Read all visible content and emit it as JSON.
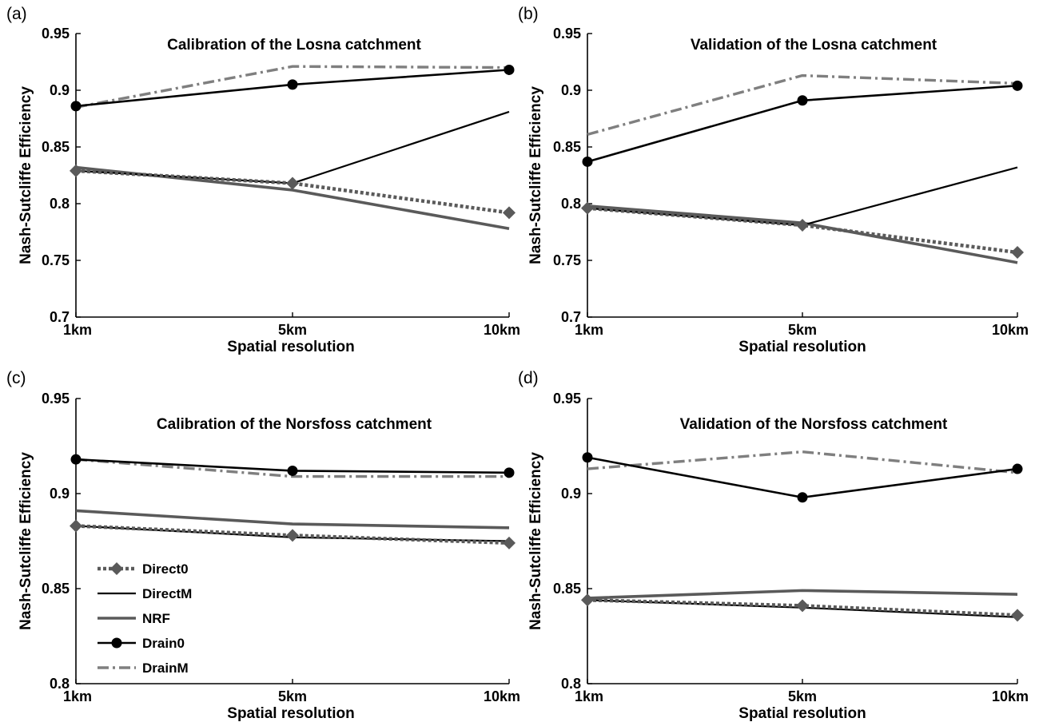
{
  "chart_data": [
    {
      "type": "line",
      "panel_label": "(a)",
      "title": "Calibration of the Losna catchment",
      "xlabel": "Spatial resolution",
      "ylabel": "Nash-Sutcliffe Efficiency",
      "categories": [
        "1km",
        "5km",
        "10km"
      ],
      "ylim": [
        0.7,
        0.95
      ],
      "yticks": [
        "0.7",
        "0.75",
        "0.8",
        "0.85",
        "0.9",
        "0.95"
      ],
      "series": [
        {
          "name": "Direct0",
          "values": [
            0.829,
            0.818,
            0.792
          ]
        },
        {
          "name": "DirectM",
          "values": [
            0.829,
            0.818,
            0.881
          ]
        },
        {
          "name": "NRF",
          "values": [
            0.832,
            0.812,
            0.778
          ]
        },
        {
          "name": "Drain0",
          "values": [
            0.886,
            0.905,
            0.918
          ]
        },
        {
          "name": "DrainM",
          "values": [
            0.885,
            0.921,
            0.92
          ]
        }
      ]
    },
    {
      "type": "line",
      "panel_label": "(b)",
      "title": "Validation of the Losna catchment",
      "xlabel": "Spatial resolution",
      "ylabel": "Nash-Sutcliffe Efficiency",
      "categories": [
        "1km",
        "5km",
        "10km"
      ],
      "ylim": [
        0.7,
        0.95
      ],
      "yticks": [
        "0.7",
        "0.75",
        "0.8",
        "0.85",
        "0.9",
        "0.95"
      ],
      "series": [
        {
          "name": "Direct0",
          "values": [
            0.796,
            0.781,
            0.757
          ]
        },
        {
          "name": "DirectM",
          "values": [
            0.796,
            0.781,
            0.832
          ]
        },
        {
          "name": "NRF",
          "values": [
            0.798,
            0.783,
            0.748
          ]
        },
        {
          "name": "Drain0",
          "values": [
            0.837,
            0.891,
            0.904
          ]
        },
        {
          "name": "DrainM",
          "values": [
            0.861,
            0.913,
            0.906
          ]
        }
      ]
    },
    {
      "type": "line",
      "panel_label": "(c)",
      "title": "Calibration of the Norsfoss catchment",
      "xlabel": "Spatial resolution",
      "ylabel": "Nash-Sutcliffe Efficiency",
      "categories": [
        "1km",
        "5km",
        "10km"
      ],
      "ylim": [
        0.8,
        0.95
      ],
      "yticks": [
        "0.8",
        "0.85",
        "0.9",
        "0.95"
      ],
      "series": [
        {
          "name": "Direct0",
          "values": [
            0.883,
            0.878,
            0.874
          ]
        },
        {
          "name": "DirectM",
          "values": [
            0.883,
            0.877,
            0.875
          ]
        },
        {
          "name": "NRF",
          "values": [
            0.891,
            0.884,
            0.882
          ]
        },
        {
          "name": "Drain0",
          "values": [
            0.918,
            0.912,
            0.911
          ]
        },
        {
          "name": "DrainM",
          "values": [
            0.918,
            0.909,
            0.909
          ]
        }
      ]
    },
    {
      "type": "line",
      "panel_label": "(d)",
      "title": "Validation of the Norsfoss catchment",
      "xlabel": "Spatial resolution",
      "ylabel": "Nash-Sutcliffe Efficiency",
      "categories": [
        "1km",
        "5km",
        "10km"
      ],
      "ylim": [
        0.8,
        0.95
      ],
      "yticks": [
        "0.8",
        "0.85",
        "0.9",
        "0.95"
      ],
      "series": [
        {
          "name": "Direct0",
          "values": [
            0.844,
            0.841,
            0.836
          ]
        },
        {
          "name": "DirectM",
          "values": [
            0.844,
            0.84,
            0.835
          ]
        },
        {
          "name": "NRF",
          "values": [
            0.845,
            0.849,
            0.847
          ]
        },
        {
          "name": "Drain0",
          "values": [
            0.919,
            0.898,
            0.913
          ]
        },
        {
          "name": "DrainM",
          "values": [
            0.913,
            0.922,
            0.911
          ]
        }
      ]
    }
  ],
  "legend": {
    "placement": "lower-left of panel (c)",
    "entries": [
      "Direct0",
      "DirectM",
      "NRF",
      "Drain0",
      "DrainM"
    ]
  },
  "series_styles": {
    "Direct0": {
      "color": "#5a5a5a",
      "line": "dotted",
      "marker": "diamond"
    },
    "DirectM": {
      "color": "#000000",
      "line": "solid-thin",
      "marker": "none"
    },
    "NRF": {
      "color": "#5a5a5a",
      "line": "solid-thick",
      "marker": "none"
    },
    "Drain0": {
      "color": "#000000",
      "line": "solid",
      "marker": "circle"
    },
    "DrainM": {
      "color": "#7f7f7f",
      "line": "dash-dot",
      "marker": "none"
    }
  }
}
